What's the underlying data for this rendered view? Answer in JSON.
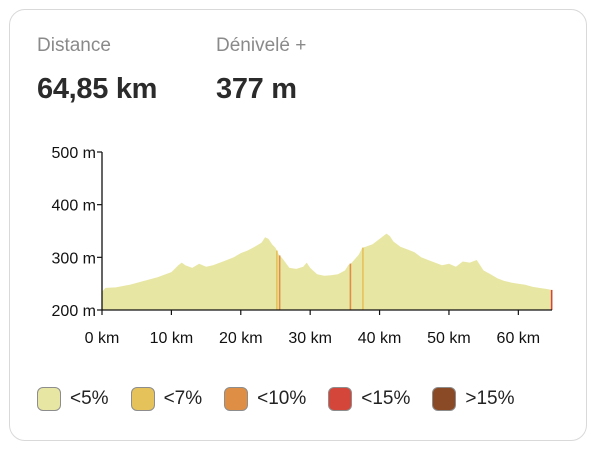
{
  "stats": {
    "distance": {
      "label": "Distance",
      "value": "64,85 km"
    },
    "elevation_gain": {
      "label": "Dénivelé +",
      "value": "377 m"
    }
  },
  "chart_data": {
    "type": "area",
    "title": "",
    "xlabel": "",
    "ylabel": "",
    "xlim": [
      0,
      64.85
    ],
    "ylim": [
      200,
      500
    ],
    "x_ticks": [
      {
        "value": 0,
        "label": "0 km"
      },
      {
        "value": 10,
        "label": "10 km"
      },
      {
        "value": 20,
        "label": "20 km"
      },
      {
        "value": 30,
        "label": "30 km"
      },
      {
        "value": 40,
        "label": "40 km"
      },
      {
        "value": 50,
        "label": "50 km"
      },
      {
        "value": 60,
        "label": "60 km"
      }
    ],
    "y_ticks": [
      {
        "value": 200,
        "label": "200 m"
      },
      {
        "value": 300,
        "label": "300 m"
      },
      {
        "value": 400,
        "label": "400 m"
      },
      {
        "value": 500,
        "label": "500 m"
      }
    ],
    "grid": false,
    "legend_position": "bottom",
    "series": [
      {
        "x": [
          0,
          0.5,
          2,
          4,
          6,
          8,
          10,
          11,
          11.5,
          12,
          13,
          14,
          15,
          16,
          17,
          18,
          19,
          20,
          21,
          22,
          23,
          23.5,
          24,
          24.5,
          25,
          25.5,
          26,
          27,
          28,
          29,
          29.5,
          30,
          31,
          32,
          33,
          34,
          35,
          35.5,
          36,
          37,
          37.5,
          38,
          39,
          40,
          40.5,
          41,
          41.5,
          42,
          43,
          44,
          45,
          46,
          47,
          48,
          49,
          50,
          51,
          52,
          53,
          54,
          55,
          56,
          57,
          58,
          59,
          60,
          61,
          62,
          63,
          64,
          64.85
        ],
        "y": [
          235,
          242,
          243,
          248,
          255,
          262,
          272,
          285,
          290,
          285,
          280,
          288,
          282,
          285,
          290,
          295,
          300,
          308,
          313,
          320,
          328,
          338,
          335,
          325,
          318,
          305,
          298,
          280,
          278,
          282,
          290,
          280,
          268,
          265,
          266,
          268,
          275,
          285,
          290,
          305,
          318,
          320,
          325,
          335,
          340,
          345,
          340,
          330,
          320,
          315,
          310,
          300,
          295,
          290,
          285,
          288,
          282,
          292,
          290,
          295,
          275,
          268,
          260,
          255,
          252,
          250,
          248,
          244,
          242,
          240,
          238
        ]
      }
    ],
    "gradient_markers": [
      {
        "x": 25.2,
        "class": "<7%"
      },
      {
        "x": 25.6,
        "class": "<10%"
      },
      {
        "x": 35.8,
        "class": "<10%"
      },
      {
        "x": 37.6,
        "class": "<7%"
      },
      {
        "x": 64.8,
        "class": "<15%"
      }
    ],
    "legend": [
      {
        "label": "<5%",
        "color": "#e8e6a3"
      },
      {
        "label": "<7%",
        "color": "#e5c25a"
      },
      {
        "label": "<10%",
        "color": "#df8f45"
      },
      {
        "label": "<15%",
        "color": "#d4453a"
      },
      {
        "label": ">15%",
        "color": "#8a4a26"
      }
    ],
    "colors": {
      "<5%": "#e8e6a3",
      "<7%": "#e5c25a",
      "<10%": "#df8f45",
      "<15%": "#d4453a",
      ">15%": "#8a4a26"
    }
  }
}
